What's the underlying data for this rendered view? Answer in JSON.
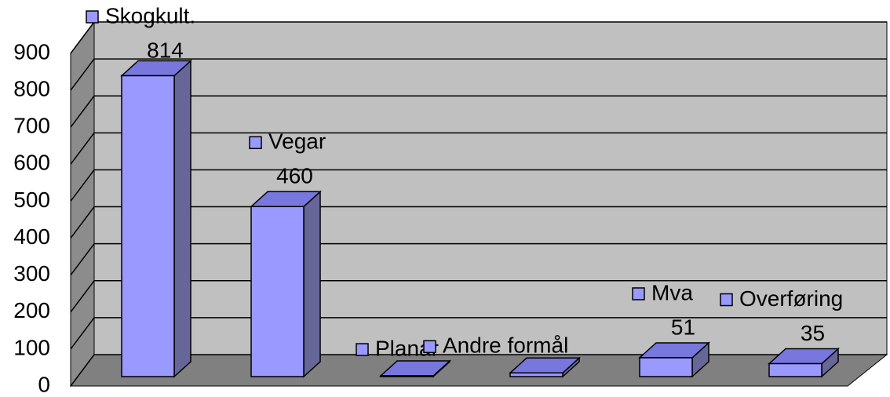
{
  "chart_data": {
    "type": "bar3d",
    "categories": [
      "Skogkult.",
      "Vegar",
      "Planar",
      "Andre formål",
      "Mva",
      "Overføring"
    ],
    "values": [
      814,
      460,
      2,
      10,
      51,
      35
    ],
    "value_labels": [
      "814",
      "460",
      null,
      null,
      "51",
      "35"
    ],
    "colors": {
      "front": "#9999ff",
      "side": "#666699",
      "top": "#7777dd"
    },
    "ylim": [
      0,
      900
    ],
    "yticks": [
      0,
      100,
      200,
      300,
      400,
      500,
      600,
      700,
      800,
      900
    ],
    "grid": true
  }
}
